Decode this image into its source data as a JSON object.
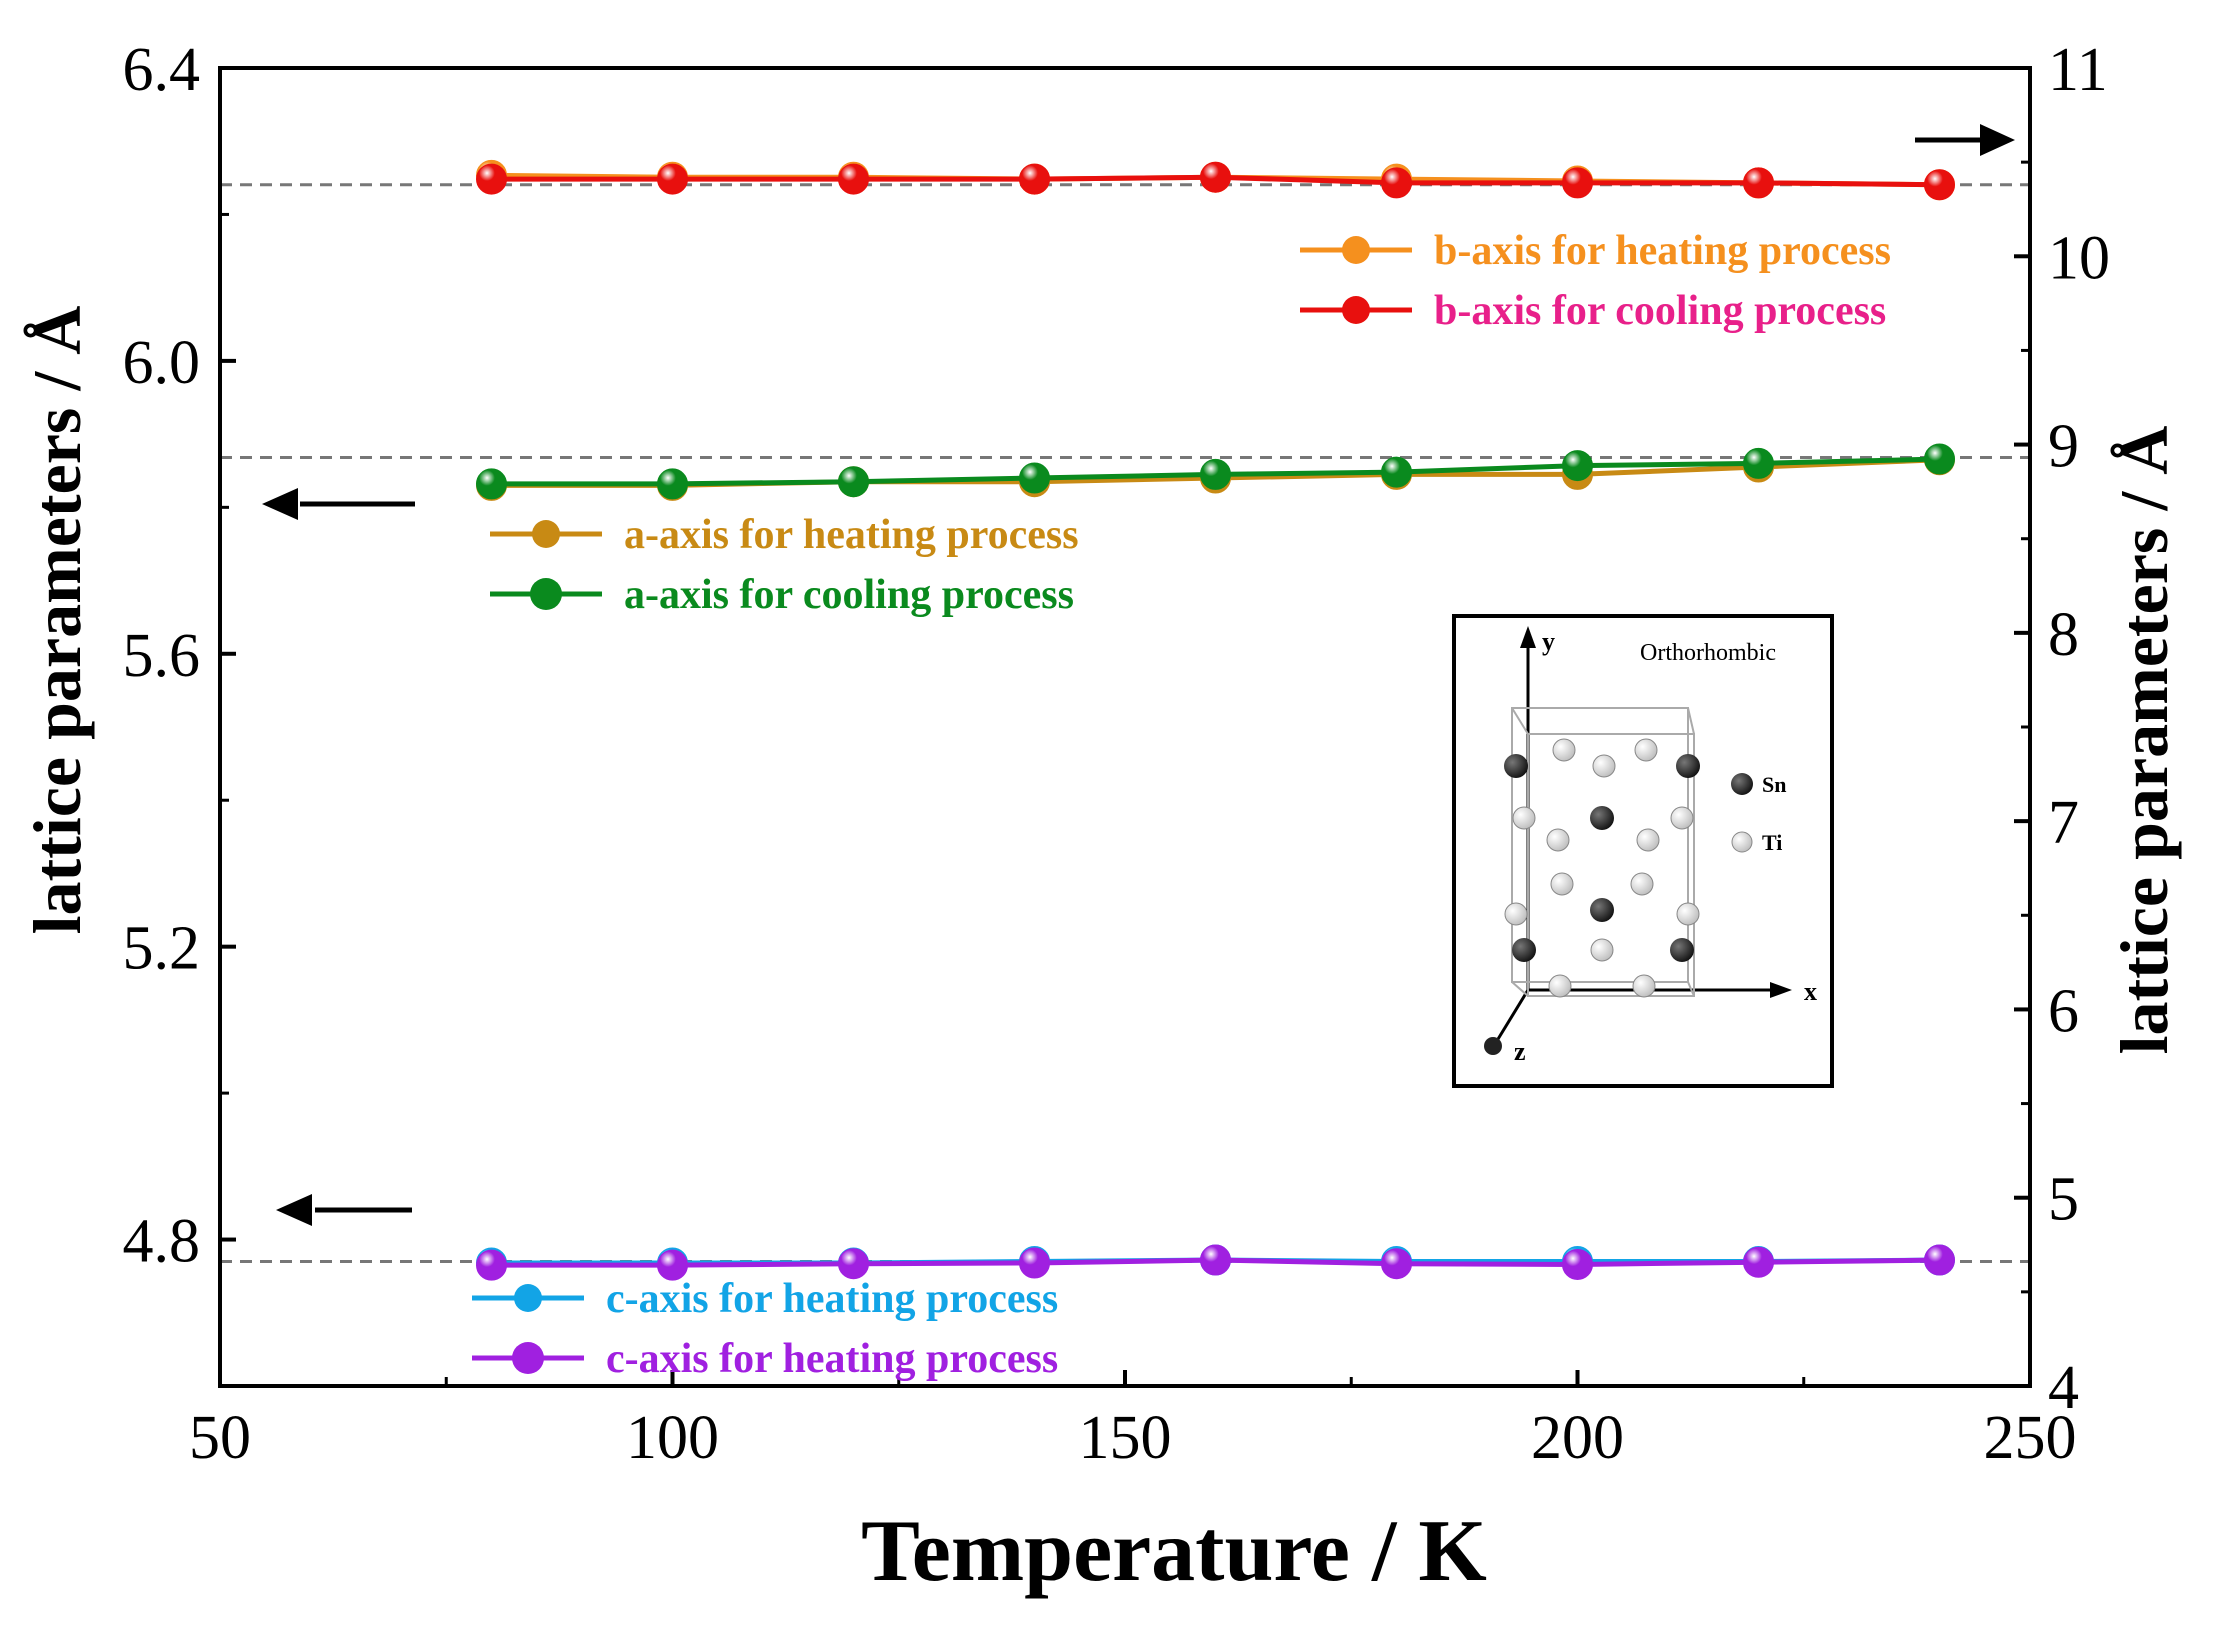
{
  "chart_data": {
    "type": "line",
    "xlabel": "Temperature / K",
    "ylabel_left": "lattice parameters / Å",
    "ylabel_right": "lattice parameters / Å",
    "xlim": [
      50,
      250
    ],
    "ylim_left": [
      4.6,
      6.4
    ],
    "ylim_right": [
      4,
      11
    ],
    "x_ticks": [
      50,
      100,
      150,
      200,
      250
    ],
    "y_left_ticks": [
      "4.8",
      "5.2",
      "5.6",
      "6.0",
      "6.4"
    ],
    "y_right_ticks": [
      "4",
      "5",
      "6",
      "7",
      "8",
      "9",
      "10",
      "11"
    ],
    "x": [
      80,
      100,
      120,
      140,
      160,
      180,
      200,
      220,
      240
    ],
    "series": [
      {
        "name": "b-axis for heating process",
        "axis": "right",
        "color": "#f5901e",
        "text_color": "#f5901e",
        "values": [
          10.43,
          10.42,
          10.42,
          10.41,
          10.42,
          10.41,
          10.4,
          10.39,
          10.38
        ]
      },
      {
        "name": "b-axis for cooling process",
        "axis": "right",
        "color": "#e8100e",
        "text_color": "#e8208a",
        "values": [
          10.41,
          10.41,
          10.41,
          10.41,
          10.42,
          10.39,
          10.39,
          10.39,
          10.38
        ]
      },
      {
        "name": "a-axis for heating process",
        "axis": "left",
        "color": "#c88a14",
        "text_color": "#c88a14",
        "values": [
          5.83,
          5.83,
          5.835,
          5.835,
          5.84,
          5.845,
          5.845,
          5.855,
          5.865
        ]
      },
      {
        "name": "a-axis for cooling process",
        "axis": "left",
        "color": "#0a8a1e",
        "text_color": "#0a8a1e",
        "values": [
          5.832,
          5.832,
          5.835,
          5.84,
          5.845,
          5.848,
          5.857,
          5.86,
          5.866
        ]
      },
      {
        "name": "c-axis for heating process",
        "axis": "left",
        "color": "#12a4e6",
        "text_color": "#12a4e6",
        "values": [
          4.768,
          4.768,
          4.768,
          4.77,
          4.772,
          4.77,
          4.77,
          4.77,
          4.772
        ]
      },
      {
        "name": "c-axis for heating process",
        "axis": "left",
        "color": "#a020e0",
        "text_color": "#a020e0",
        "values": [
          4.765,
          4.765,
          4.767,
          4.768,
          4.772,
          4.767,
          4.766,
          4.769,
          4.772
        ]
      }
    ],
    "reference_lines": [
      {
        "axis": "right",
        "value": 10.38
      },
      {
        "axis": "left",
        "value": 5.868
      },
      {
        "axis": "left",
        "value": 4.77
      }
    ],
    "inset": {
      "title": "Orthorhombic",
      "legend": [
        "Sn",
        "Ti"
      ],
      "axes": [
        "x",
        "y",
        "z"
      ]
    }
  }
}
